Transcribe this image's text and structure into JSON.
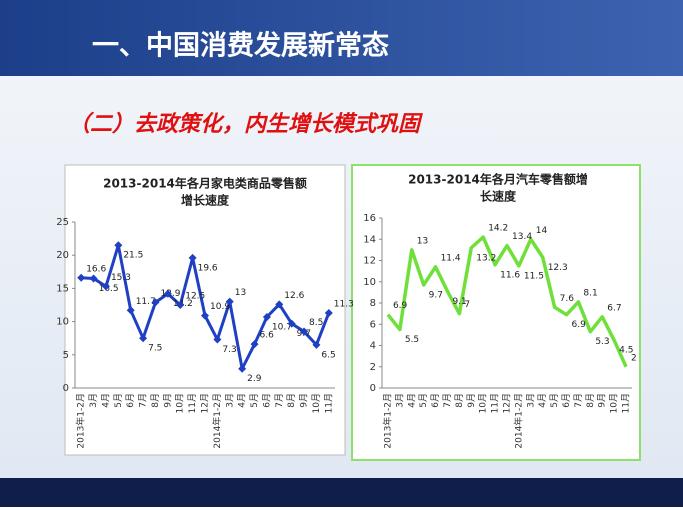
{
  "header": {
    "title": "一、中国消费发展新常态"
  },
  "subtitle": "（二）去政策化，内生增长模式巩固",
  "chart_data": [
    {
      "type": "line",
      "title": [
        "2013-2014年各月家电类商品零售额",
        "增长速度"
      ],
      "categories": [
        "2013年1-2月",
        "3月",
        "4月",
        "5月",
        "6月",
        "7月",
        "8月",
        "9月",
        "10月",
        "11月",
        "12月",
        "2014年1-2月",
        "3月",
        "4月",
        "5月",
        "6月",
        "7月",
        "8月",
        "9月",
        "10月",
        "11月"
      ],
      "series": [
        {
          "name": "家电类商品零售额增长速度",
          "color": "#1f3fc4",
          "values": [
            16.6,
            16.5,
            15.3,
            21.5,
            11.7,
            7.5,
            12.9,
            14.2,
            12.5,
            19.6,
            10.9,
            7.3,
            13,
            2.9,
            6.6,
            10.7,
            12.6,
            9.7,
            8.5,
            6.5,
            11.3
          ]
        }
      ],
      "ylim": [
        0,
        25
      ],
      "yticks": [
        0,
        5,
        10,
        15,
        20,
        25
      ],
      "markers": true
    },
    {
      "type": "line",
      "title": [
        "2013-2014年各月汽车零售额增",
        "长速度"
      ],
      "categories": [
        "2013年1-2月",
        "3月",
        "4月",
        "5月",
        "6月",
        "7月",
        "8月",
        "9月",
        "10月",
        "11月",
        "12月",
        "2014年1-2月",
        "3月",
        "4月",
        "5月",
        "6月",
        "7月",
        "8月",
        "9月",
        "10月",
        "11月"
      ],
      "series": [
        {
          "name": "汽车零售额增长速度",
          "color": "#6fe03a",
          "values": [
            6.9,
            5.5,
            13,
            9.7,
            11.4,
            9.1,
            7,
            13.2,
            14.2,
            11.6,
            13.4,
            11.5,
            14,
            12.3,
            7.6,
            6.9,
            8.1,
            5.3,
            6.7,
            4.5,
            2
          ]
        }
      ],
      "ylim": [
        0,
        16
      ],
      "yticks": [
        0,
        2,
        4,
        6,
        8,
        10,
        12,
        14,
        16
      ],
      "markers": false
    }
  ]
}
